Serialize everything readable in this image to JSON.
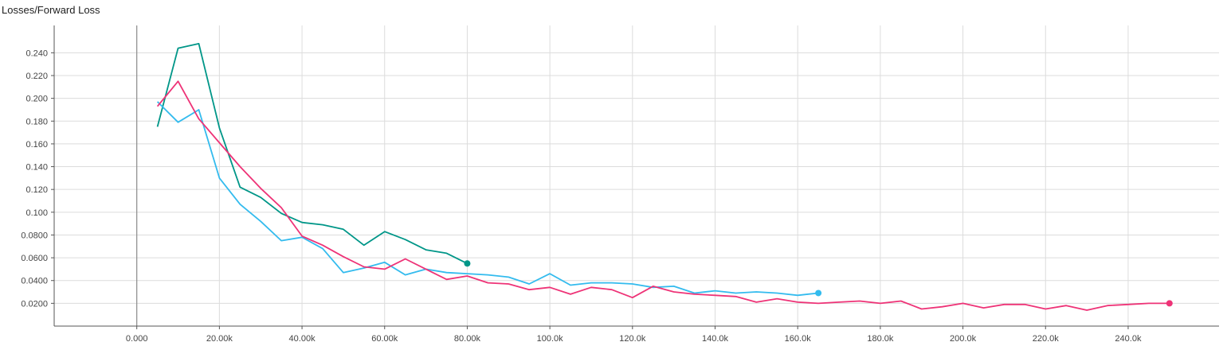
{
  "chart_data": {
    "type": "line",
    "title": "Losses/Forward Loss",
    "xlabel": "",
    "ylabel": "",
    "xlim": [
      -20000,
      262000
    ],
    "ylim": [
      0.0,
      0.264
    ],
    "x_ticks": [
      0,
      20000,
      40000,
      60000,
      80000,
      100000,
      120000,
      140000,
      160000,
      180000,
      200000,
      220000,
      240000
    ],
    "x_tick_labels": [
      "0.000",
      "20.00k",
      "40.00k",
      "60.00k",
      "80.00k",
      "100.0k",
      "120.0k",
      "140.0k",
      "160.0k",
      "180.0k",
      "200.0k",
      "220.0k",
      "240.0k"
    ],
    "y_ticks": [
      0.02,
      0.04,
      0.06,
      0.08,
      0.1,
      0.12,
      0.14,
      0.16,
      0.18,
      0.2,
      0.22,
      0.24
    ],
    "y_tick_labels": [
      "0.0200",
      "0.0400",
      "0.0600",
      "0.0800",
      "0.100",
      "0.120",
      "0.140",
      "0.160",
      "0.180",
      "0.200",
      "0.220",
      "0.240"
    ],
    "grid": true,
    "series": [
      {
        "color": "#009688",
        "end_marker": "dot",
        "points": [
          [
            5000,
            0.175
          ],
          [
            10000,
            0.244
          ],
          [
            15000,
            0.248
          ],
          [
            20000,
            0.174
          ],
          [
            25000,
            0.122
          ],
          [
            30000,
            0.113
          ],
          [
            35000,
            0.099
          ],
          [
            40000,
            0.091
          ],
          [
            45000,
            0.089
          ],
          [
            50000,
            0.085
          ],
          [
            55000,
            0.071
          ],
          [
            60000,
            0.083
          ],
          [
            65000,
            0.076
          ],
          [
            70000,
            0.067
          ],
          [
            75000,
            0.064
          ],
          [
            80000,
            0.055
          ]
        ]
      },
      {
        "color": "#33bbee",
        "end_marker": "dot",
        "points": [
          [
            5000,
            0.197
          ],
          [
            10000,
            0.179
          ],
          [
            15000,
            0.19
          ],
          [
            20000,
            0.13
          ],
          [
            25000,
            0.107
          ],
          [
            30000,
            0.092
          ],
          [
            35000,
            0.075
          ],
          [
            40000,
            0.078
          ],
          [
            45000,
            0.068
          ],
          [
            50000,
            0.047
          ],
          [
            55000,
            0.051
          ],
          [
            60000,
            0.056
          ],
          [
            65000,
            0.045
          ],
          [
            70000,
            0.05
          ],
          [
            75000,
            0.047
          ],
          [
            80000,
            0.046
          ],
          [
            85000,
            0.045
          ],
          [
            90000,
            0.043
          ],
          [
            95000,
            0.037
          ],
          [
            100000,
            0.046
          ],
          [
            105000,
            0.036
          ],
          [
            110000,
            0.038
          ],
          [
            115000,
            0.038
          ],
          [
            120000,
            0.037
          ],
          [
            125000,
            0.034
          ],
          [
            130000,
            0.035
          ],
          [
            135000,
            0.029
          ],
          [
            140000,
            0.031
          ],
          [
            145000,
            0.029
          ],
          [
            150000,
            0.03
          ],
          [
            155000,
            0.029
          ],
          [
            160000,
            0.027
          ],
          [
            165000,
            0.029
          ]
        ]
      },
      {
        "color": "#ee3377",
        "end_marker": "dot",
        "points": [
          [
            5000,
            0.193
          ],
          [
            10000,
            0.215
          ],
          [
            15000,
            0.182
          ],
          [
            20000,
            0.161
          ],
          [
            25000,
            0.14
          ],
          [
            30000,
            0.121
          ],
          [
            35000,
            0.104
          ],
          [
            40000,
            0.079
          ],
          [
            45000,
            0.071
          ],
          [
            50000,
            0.061
          ],
          [
            55000,
            0.052
          ],
          [
            60000,
            0.05
          ],
          [
            65000,
            0.059
          ],
          [
            70000,
            0.05
          ],
          [
            75000,
            0.041
          ],
          [
            80000,
            0.044
          ],
          [
            85000,
            0.038
          ],
          [
            90000,
            0.037
          ],
          [
            95000,
            0.032
          ],
          [
            100000,
            0.034
          ],
          [
            105000,
            0.028
          ],
          [
            110000,
            0.034
          ],
          [
            115000,
            0.032
          ],
          [
            120000,
            0.025
          ],
          [
            125000,
            0.035
          ],
          [
            130000,
            0.03
          ],
          [
            135000,
            0.028
          ],
          [
            140000,
            0.027
          ],
          [
            145000,
            0.026
          ],
          [
            150000,
            0.021
          ],
          [
            155000,
            0.024
          ],
          [
            160000,
            0.021
          ],
          [
            165000,
            0.02
          ],
          [
            170000,
            0.021
          ],
          [
            175000,
            0.022
          ],
          [
            180000,
            0.02
          ],
          [
            185000,
            0.022
          ],
          [
            190000,
            0.015
          ],
          [
            195000,
            0.017
          ],
          [
            200000,
            0.02
          ],
          [
            205000,
            0.016
          ],
          [
            210000,
            0.019
          ],
          [
            215000,
            0.019
          ],
          [
            220000,
            0.015
          ],
          [
            225000,
            0.018
          ],
          [
            230000,
            0.014
          ],
          [
            235000,
            0.018
          ],
          [
            240000,
            0.019
          ],
          [
            245000,
            0.02
          ],
          [
            250000,
            0.02
          ]
        ]
      }
    ]
  }
}
